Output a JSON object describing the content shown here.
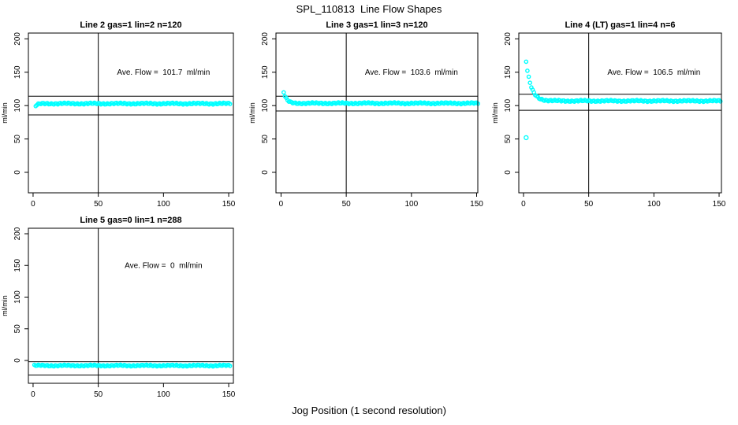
{
  "page": {
    "title": "SPL_110813  Line Flow Shapes",
    "xlabel": "Jog Position (1 second resolution)",
    "background_color": "#ffffff",
    "marker_color": "#00ffff",
    "line_color": "#000000"
  },
  "chart_data": [
    {
      "type": "scatter",
      "title": "Line 2 gas=1 lin=2 n=120",
      "annotation": "Ave. Flow =  101.7  ml/min",
      "ave_flow": 101.7,
      "ylabel": "ml/min",
      "xticks": [
        0,
        50,
        100,
        150
      ],
      "yticks": [
        0,
        50,
        100,
        150,
        200
      ],
      "xlim": [
        -3.6,
        153.6
      ],
      "ylim": [
        -30.7,
        208.7
      ],
      "vline_x": 50,
      "ref_lines": [
        114,
        86
      ],
      "annotation_xy": [
        100,
        150
      ],
      "marker_color": "#00ffff",
      "grid": false,
      "series": {
        "x_start": 2,
        "x_end": 151,
        "y_start": 99.5,
        "y_flat": 103,
        "tau": 1.8,
        "outliers": []
      }
    },
    {
      "type": "scatter",
      "title": "Line 3 gas=1 lin=3 n=120",
      "annotation": "Ave. Flow =  103.6  ml/min",
      "ave_flow": 103.6,
      "ylabel": "ml/min",
      "xticks": [
        0,
        50,
        100,
        150
      ],
      "yticks": [
        0,
        50,
        100,
        150,
        200
      ],
      "xlim": [
        -3.9,
        150.9
      ],
      "ylim": [
        -30.7,
        208.7
      ],
      "vline_x": 50,
      "ref_lines": [
        114,
        92
      ],
      "annotation_xy": [
        100,
        150
      ],
      "marker_color": "#00ffff",
      "grid": false,
      "series": {
        "x_start": 2,
        "x_end": 151,
        "y_start": 120,
        "y_flat": 103.5,
        "tau": 2.2,
        "outliers": []
      }
    },
    {
      "type": "scatter",
      "title": "Line 4 (LT) gas=1 lin=4 n=6",
      "annotation": "Ave. Flow =  106.5  ml/min",
      "ave_flow": 106.5,
      "ylabel": "ml/min",
      "xticks": [
        0,
        50,
        100,
        150
      ],
      "yticks": [
        0,
        50,
        100,
        150,
        200
      ],
      "xlim": [
        -3.6,
        151.8
      ],
      "ylim": [
        -30.7,
        208.7
      ],
      "vline_x": 50,
      "ref_lines": [
        117,
        93
      ],
      "annotation_xy": [
        100,
        150
      ],
      "marker_color": "#00ffff",
      "grid": false,
      "series": {
        "x_start": 2,
        "x_end": 151,
        "y_start": 166,
        "y_flat": 107,
        "tau": 3.8,
        "outliers": [
          [
            2,
            52
          ]
        ]
      }
    },
    {
      "type": "scatter",
      "title": "Line 5 gas=0 lin=1 n=288",
      "annotation": "Ave. Flow =  0  ml/min",
      "ave_flow": 0,
      "ylabel": "ml/min",
      "xticks": [
        0,
        50,
        100,
        150
      ],
      "yticks": [
        0,
        50,
        100,
        150,
        200
      ],
      "xlim": [
        -3.6,
        153.6
      ],
      "ylim": [
        -36,
        208.7
      ],
      "vline_x": 50,
      "ref_lines": [
        -2,
        -23
      ],
      "annotation_xy": [
        100,
        150
      ],
      "marker_color": "#00ffff",
      "grid": false,
      "series": {
        "x_start": 1,
        "x_end": 151,
        "y_start": -8,
        "y_flat": -8,
        "tau": 1,
        "outliers": []
      }
    }
  ]
}
